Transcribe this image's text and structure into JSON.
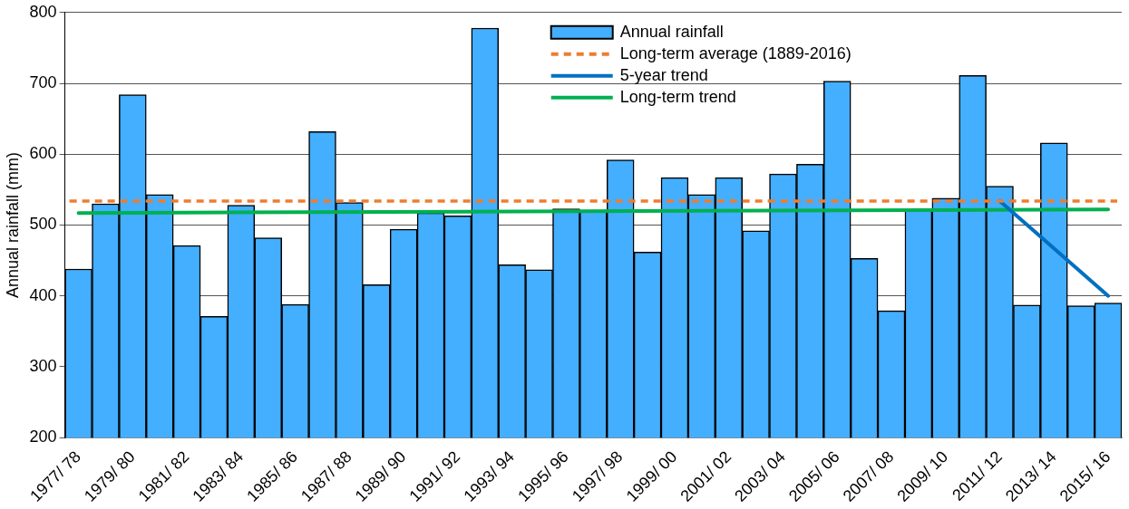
{
  "chart_data": {
    "type": "bar",
    "ylabel": "Annual rainfall (mm)",
    "categories": [
      "1977/ 78",
      null,
      "1979/ 80",
      null,
      "1981/ 82",
      null,
      "1983/ 84",
      null,
      "1985/ 86",
      null,
      "1987/ 88",
      null,
      "1989/ 90",
      null,
      "1991/ 92",
      null,
      "1993/ 94",
      null,
      "1995/ 96",
      null,
      "1997/ 98",
      null,
      "1999/ 00",
      null,
      "2001/ 02",
      null,
      "2003/ 04",
      null,
      "2005/ 06",
      null,
      "2007/ 08",
      null,
      "2009/ 10",
      null,
      "2011/ 12",
      null,
      "2013/ 14",
      null,
      "2015/ 16"
    ],
    "series": [
      {
        "name": "Annual rainfall",
        "color": "#44aeff",
        "values": [
          438,
          530,
          684,
          543,
          471,
          371,
          528,
          482,
          388,
          632,
          532,
          416,
          494,
          517,
          513,
          778,
          444,
          437,
          523,
          520,
          592,
          462,
          567,
          543,
          567,
          492,
          572,
          586,
          703,
          453,
          379,
          520,
          538,
          711,
          555,
          387,
          616,
          386,
          390
        ]
      },
      {
        "name": "5-year trend",
        "type": "line",
        "color": "#0070c0",
        "values": [
          null,
          null,
          null,
          null,
          null,
          null,
          null,
          null,
          null,
          null,
          null,
          null,
          null,
          null,
          null,
          null,
          null,
          null,
          null,
          null,
          null,
          null,
          null,
          null,
          null,
          null,
          null,
          null,
          null,
          null,
          null,
          null,
          null,
          null,
          534,
          null,
          null,
          null,
          400
        ]
      },
      {
        "name": "Long-term trend",
        "type": "line",
        "color": "#00b050",
        "values": [
          517,
          null,
          null,
          null,
          null,
          null,
          null,
          null,
          null,
          null,
          null,
          null,
          null,
          null,
          null,
          null,
          null,
          null,
          null,
          null,
          null,
          null,
          null,
          null,
          null,
          null,
          null,
          null,
          null,
          null,
          null,
          null,
          null,
          null,
          null,
          null,
          null,
          null,
          522
        ]
      }
    ],
    "ref_lines": [
      {
        "axis": "y",
        "value": 534,
        "label": "Long-term average (1889-2016)",
        "color": "#ed7d31",
        "line_style": "dashed"
      }
    ],
    "ylim": [
      200,
      800
    ],
    "yticks": [
      200,
      300,
      400,
      500,
      600,
      700,
      800
    ],
    "grid": "y",
    "legend": "top right"
  }
}
